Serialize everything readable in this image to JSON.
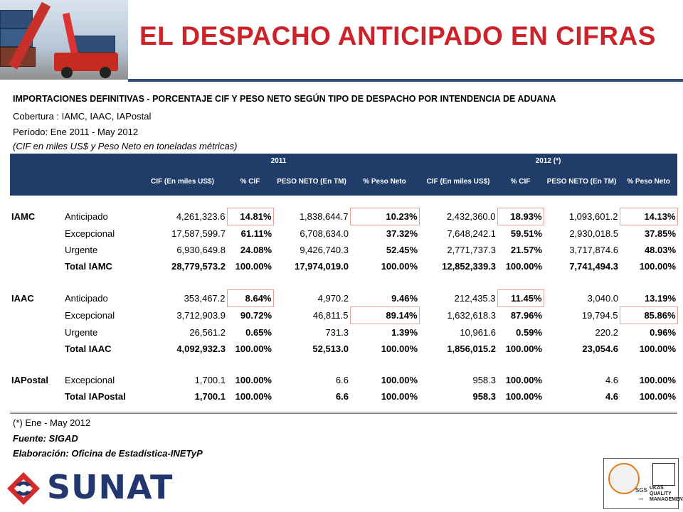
{
  "title": "EL DESPACHO ANTICIPADO EN CIFRAS",
  "subtitle": "IMPORTACIONES DEFINITIVAS - PORCENTAJE CIF Y PESO NETO SEGÚN TIPO DE DESPACHO POR INTENDENCIA DE ADUANA",
  "coverage": "Cobertura : IAMC, IAAC, IAPostal",
  "period": "Período: Ene 2011 - May 2012",
  "units_note": "(CIF en miles US$ y Peso Neto en toneladas métricas)",
  "table": {
    "year_2011": "2011",
    "year_2012": "2012 (*)",
    "col_cif": "CIF (En miles US$)",
    "col_pct_cif": "% CIF",
    "col_peso": "PESO NETO (En TM)",
    "col_pct_peso": "% Peso Neto",
    "groups": [
      {
        "name": "IAMC",
        "rows": [
          {
            "type": "Anticipado",
            "cif_2011": "4,261,323.6",
            "pct_cif_2011": "14.81%",
            "peso_2011": "1,838,644.7",
            "pct_peso_2011": "10.23%",
            "cif_2012": "2,432,360.0",
            "pct_cif_2012": "18.93%",
            "peso_2012": "1,093,601.2",
            "pct_peso_2012": "14.13%"
          },
          {
            "type": "Excepcional",
            "cif_2011": "17,587,599.7",
            "pct_cif_2011": "61.11%",
            "peso_2011": "6,708,634.0",
            "pct_peso_2011": "37.32%",
            "cif_2012": "7,648,242.1",
            "pct_cif_2012": "59.51%",
            "peso_2012": "2,930,018.5",
            "pct_peso_2012": "37.85%"
          },
          {
            "type": "Urgente",
            "cif_2011": "6,930,649.8",
            "pct_cif_2011": "24.08%",
            "peso_2011": "9,426,740.3",
            "pct_peso_2011": "52.45%",
            "cif_2012": "2,771,737.3",
            "pct_cif_2012": "21.57%",
            "peso_2012": "3,717,874.6",
            "pct_peso_2012": "48.03%"
          }
        ],
        "total": {
          "type": "Total IAMC",
          "cif_2011": "28,779,573.2",
          "pct_cif_2011": "100.00%",
          "peso_2011": "17,974,019.0",
          "pct_peso_2011": "100.00%",
          "cif_2012": "12,852,339.3",
          "pct_cif_2012": "100.00%",
          "peso_2012": "7,741,494.3",
          "pct_peso_2012": "100.00%"
        }
      },
      {
        "name": "IAAC",
        "rows": [
          {
            "type": "Anticipado",
            "cif_2011": "353,467.2",
            "pct_cif_2011": "8.64%",
            "peso_2011": "4,970.2",
            "pct_peso_2011": "9.46%",
            "cif_2012": "212,435.3",
            "pct_cif_2012": "11.45%",
            "peso_2012": "3,040.0",
            "pct_peso_2012": "13.19%"
          },
          {
            "type": "Excepcional",
            "cif_2011": "3,712,903.9",
            "pct_cif_2011": "90.72%",
            "peso_2011": "46,811.5",
            "pct_peso_2011": "89.14%",
            "cif_2012": "1,632,618.3",
            "pct_cif_2012": "87.96%",
            "peso_2012": "19,794.5",
            "pct_peso_2012": "85.86%"
          },
          {
            "type": "Urgente",
            "cif_2011": "26,561.2",
            "pct_cif_2011": "0.65%",
            "peso_2011": "731.3",
            "pct_peso_2011": "1.39%",
            "cif_2012": "10,961.6",
            "pct_cif_2012": "0.59%",
            "peso_2012": "220.2",
            "pct_peso_2012": "0.96%"
          }
        ],
        "total": {
          "type": "Total IAAC",
          "cif_2011": "4,092,932.3",
          "pct_cif_2011": "100.00%",
          "peso_2011": "52,513.0",
          "pct_peso_2011": "100.00%",
          "cif_2012": "1,856,015.2",
          "pct_cif_2012": "100.00%",
          "peso_2012": "23,054.6",
          "pct_peso_2012": "100.00%"
        }
      },
      {
        "name": "IAPostal",
        "rows": [
          {
            "type": "Excepcional",
            "cif_2011": "1,700.1",
            "pct_cif_2011": "100.00%",
            "peso_2011": "6.6",
            "pct_peso_2011": "100.00%",
            "cif_2012": "958.3",
            "pct_cif_2012": "100.00%",
            "peso_2012": "4.6",
            "pct_peso_2012": "100.00%"
          }
        ],
        "total": {
          "type": "Total IAPostal",
          "cif_2011": "1,700.1",
          "pct_cif_2011": "100.00%",
          "peso_2011": "6.6",
          "pct_peso_2011": "100.00%",
          "cif_2012": "958.3",
          "pct_cif_2012": "100.00%",
          "peso_2012": "4.6",
          "pct_peso_2012": "100.00%"
        }
      }
    ]
  },
  "footnote": "(*) Ene - May 2012",
  "source": "Fuente: SIGAD",
  "prepared_by": "Elaboración: Oficina de Estadística-INETyP",
  "logo_text": "SUNAT",
  "cert": {
    "sgs": "SGS",
    "ukas": "UKAS QUALITY MANAGEMENT",
    "code": "005"
  },
  "colors": {
    "title": "#cc2229",
    "header_bg": "#1f3d68",
    "rule": "#2e4f7a",
    "highlight_border": "#e8a0a0",
    "logo": "#21376e"
  }
}
